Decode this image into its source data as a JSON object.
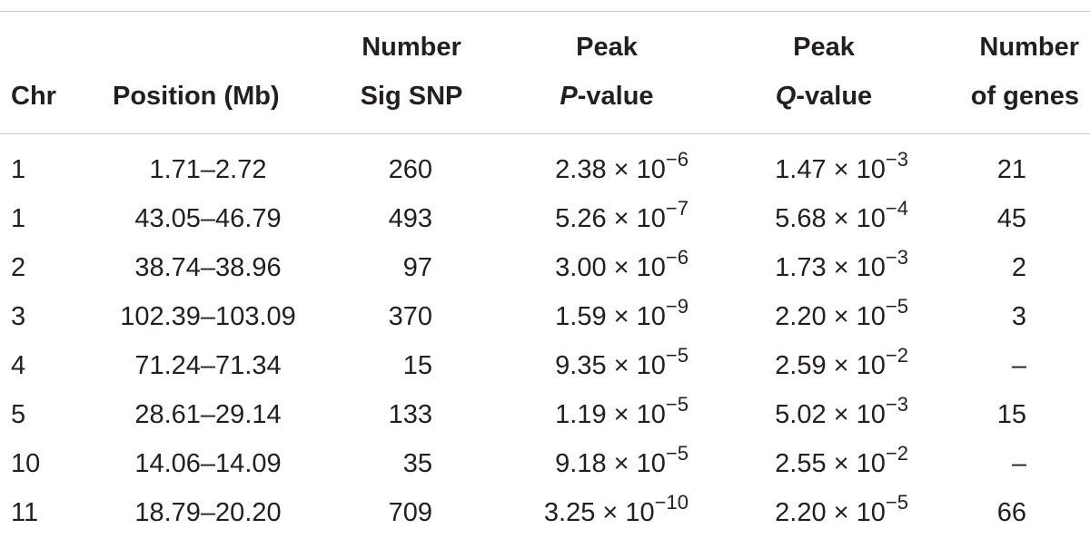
{
  "table": {
    "headers": {
      "chr": "Chr",
      "position": "Position (Mb)",
      "number_sig_snp": [
        "Number",
        "Sig SNP"
      ],
      "peak_p": [
        "Peak",
        "P",
        "-value"
      ],
      "peak_q": [
        "Peak",
        "Q",
        "-value"
      ],
      "number_genes": [
        "Number",
        "of genes"
      ]
    },
    "rows": [
      {
        "chr": "1",
        "position": "1.71–2.72",
        "sig_snp": "260",
        "p_mant": "2.38 × 10",
        "p_exp": "−6",
        "q_mant": "1.47 × 10",
        "q_exp": "−3",
        "genes": "21"
      },
      {
        "chr": "1",
        "position": "43.05–46.79",
        "sig_snp": "493",
        "p_mant": "5.26 × 10",
        "p_exp": "−7",
        "q_mant": "5.68 × 10",
        "q_exp": "−4",
        "genes": "45"
      },
      {
        "chr": "2",
        "position": "38.74–38.96",
        "sig_snp": "97",
        "p_mant": "3.00 × 10",
        "p_exp": "−6",
        "q_mant": "1.73 × 10",
        "q_exp": "−3",
        "genes": "2"
      },
      {
        "chr": "3",
        "position": "102.39–103.09",
        "sig_snp": "370",
        "p_mant": "1.59 × 10",
        "p_exp": "−9",
        "q_mant": "2.20 × 10",
        "q_exp": "−5",
        "genes": "3"
      },
      {
        "chr": "4",
        "position": "71.24–71.34",
        "sig_snp": "15",
        "p_mant": "9.35 × 10",
        "p_exp": "−5",
        "q_mant": "2.59 × 10",
        "q_exp": "−2",
        "genes": "–"
      },
      {
        "chr": "5",
        "position": "28.61–29.14",
        "sig_snp": "133",
        "p_mant": "1.19 × 10",
        "p_exp": "−5",
        "q_mant": "5.02 × 10",
        "q_exp": "−3",
        "genes": "15"
      },
      {
        "chr": "10",
        "position": "14.06–14.09",
        "sig_snp": "35",
        "p_mant": "9.18 × 10",
        "p_exp": "−5",
        "q_mant": "2.55 × 10",
        "q_exp": "−2",
        "genes": "–"
      },
      {
        "chr": "11",
        "position": "18.79–20.20",
        "sig_snp": "709",
        "p_mant": "3.25 × 10",
        "p_exp": "−10",
        "q_mant": "2.20 × 10",
        "q_exp": "−5",
        "genes": "66"
      }
    ]
  }
}
